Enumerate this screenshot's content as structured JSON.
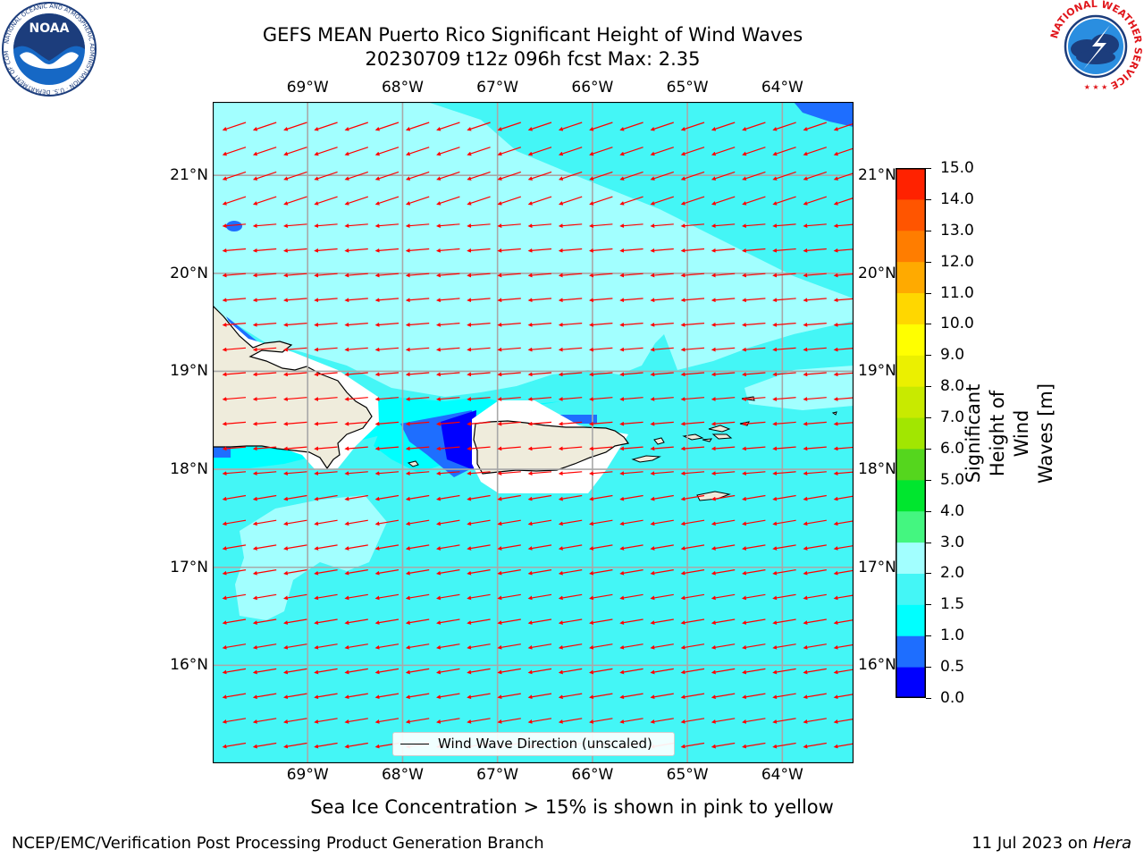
{
  "title_line1": "GEFS MEAN Puerto Rico Significant Height of Wind Waves",
  "title_line2": "20230709 t12z 096h fcst   Max: 2.35",
  "map": {
    "lon_ticks": [
      "69°W",
      "68°W",
      "67°W",
      "66°W",
      "65°W",
      "64°W"
    ],
    "lat_ticks": [
      "21°N",
      "20°N",
      "19°N",
      "18°N",
      "17°N",
      "16°N"
    ],
    "lon_range": [
      -70.0,
      -63.25
    ],
    "lat_range": [
      15.0,
      21.75
    ],
    "legend_label": "Wind Wave Direction (unscaled)",
    "arrow_color": "#ff0000",
    "land_color": "#efecdc",
    "grid": true
  },
  "colorbar": {
    "label": "Significant Height of Wind Waves [m]",
    "label_lines": [
      "Significant Height of Wind",
      "Waves [m]"
    ],
    "ticks": [
      "0.0",
      "0.5",
      "1.0",
      "1.5",
      "2.0",
      "3.0",
      "4.0",
      "5.0",
      "6.0",
      "7.0",
      "8.0",
      "9.0",
      "10.0",
      "11.0",
      "12.0",
      "13.0",
      "14.0",
      "15.0"
    ],
    "colors": [
      "#0000ff",
      "#1e6eff",
      "#00ffff",
      "#44f6f6",
      "#a2ffff",
      "#44f680",
      "#00e62e",
      "#55d61e",
      "#a2e601",
      "#c8ea00",
      "#ebf000",
      "#ffff00",
      "#ffd700",
      "#ffaa00",
      "#ff7d00",
      "#ff5500",
      "#ff2200"
    ]
  },
  "subnote": "Sea Ice Concentration > 15% is shown in pink to yellow",
  "footer": {
    "left": "NCEP/EMC/Verification Post Processing Product Generation Branch",
    "right_date": "11 Jul 2023 on ",
    "right_host": "Hera"
  },
  "logos": {
    "noaa_text": "NOAA",
    "noaa_ring": "NATIONAL OCEANIC AND ATMOSPHERIC ADMINISTRATION · U.S. DEPARTMENT OF COMMERCE",
    "nws_ring": "NATIONAL WEATHER SERVICE"
  }
}
